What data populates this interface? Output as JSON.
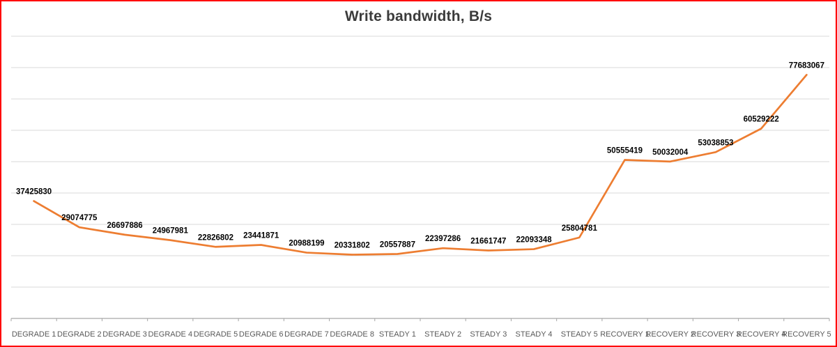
{
  "page": {
    "frame_border_color": "#ff0000",
    "background_color": "#ffffff"
  },
  "chart_data": {
    "type": "line",
    "title": "Write bandwidth, B/s",
    "categories": [
      "DEGRADE 1",
      "DEGRADE 2",
      "DEGRADE 3",
      "DEGRADE 4",
      "DEGRADE 5",
      "DEGRADE 6",
      "DEGRADE 7",
      "DEGRADE 8",
      "STEADY 1",
      "STEADY 2",
      "STEADY 3",
      "STEADY 4",
      "STEADY 5",
      "RECOVERY 1",
      "RECOVERY 2",
      "RECOVERY 3",
      "RECOVERY 4",
      "RECOVERY 5"
    ],
    "values": [
      37425830,
      29074775,
      26697886,
      24967981,
      22826802,
      23441871,
      20988199,
      20331802,
      20557887,
      22397286,
      21661747,
      22093348,
      25804781,
      50555419,
      50032004,
      53038853,
      60529222,
      77683067
    ],
    "series_color": "#ED7D31",
    "data_label_color": "#000000",
    "axis_label_color": "#595959",
    "gridline_color": "#d9d9d9",
    "axis_line_color": "#a6a6a6",
    "xlabel": "",
    "ylabel": "",
    "ylim": [
      0,
      90000000
    ],
    "gridline_step": 10000000,
    "grid": true,
    "legend": "none",
    "data_labels": true
  }
}
